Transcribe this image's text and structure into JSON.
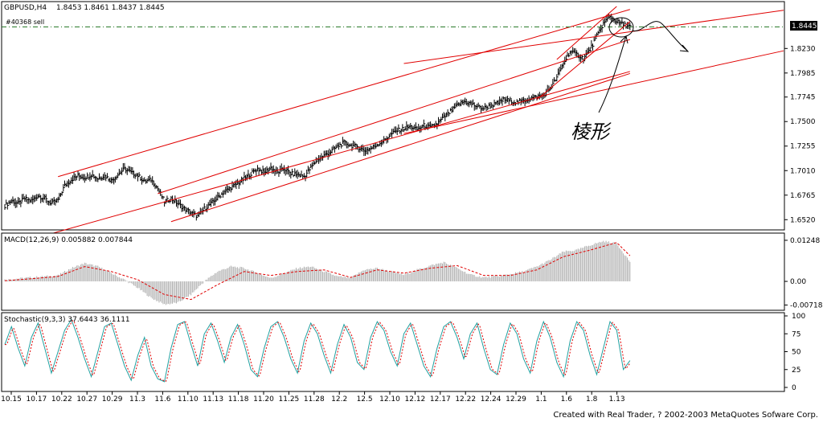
{
  "window": {
    "symbol": "GBPUSD,H4",
    "ohlc": "1.8453 1.8461 1.8437 1.8445",
    "order_label": "#40368 sell",
    "current_price": "1.8445",
    "annotation_text": "棱形",
    "footer": "Created with Real Trader, ? 2002-2003 MetaQuotes Sofware Corp."
  },
  "colors": {
    "bar": "#000000",
    "channel": "#e00000",
    "order_line": "#2a7a2a",
    "macd_hist": "#b0b0b0",
    "macd_signal": "#e00000",
    "stoch_main": "#20a0a0",
    "stoch_signal": "#e00000",
    "price_box": "#000000"
  },
  "chart_data": [
    {
      "type": "line",
      "subtype": "ohlc-bars",
      "name": "GBPUSD H4",
      "ylim": [
        1.645,
        1.865
      ],
      "price_ticks": [
        "1.8445",
        "1.8230",
        "1.7985",
        "1.7745",
        "1.7500",
        "1.7255",
        "1.7010",
        "1.6765",
        "1.6520"
      ],
      "x_ticks": [
        "10.15",
        "10.17",
        "10.22",
        "10.27",
        "10.29",
        "11.3",
        "11.6",
        "11.10",
        "11.13",
        "11.18",
        "11.20",
        "11.25",
        "11.28",
        "12.2",
        "12.5",
        "12.10",
        "12.12",
        "12.17",
        "12.22",
        "12.24",
        "12.29",
        "1.1",
        "1.6",
        "1.8",
        "1.13"
      ],
      "close_path": [
        [
          0,
          1.666
        ],
        [
          5,
          1.671
        ],
        [
          10,
          1.668
        ],
        [
          15,
          1.673
        ],
        [
          20,
          1.671
        ],
        [
          25,
          1.676
        ],
        [
          30,
          1.673
        ],
        [
          35,
          1.668
        ],
        [
          40,
          1.672
        ],
        [
          45,
          1.686
        ],
        [
          50,
          1.692
        ],
        [
          55,
          1.696
        ],
        [
          60,
          1.694
        ],
        [
          65,
          1.697
        ],
        [
          70,
          1.693
        ],
        [
          75,
          1.696
        ],
        [
          80,
          1.691
        ],
        [
          85,
          1.697
        ],
        [
          90,
          1.703
        ],
        [
          95,
          1.699
        ],
        [
          100,
          1.696
        ],
        [
          105,
          1.69
        ],
        [
          110,
          1.692
        ],
        [
          115,
          1.683
        ],
        [
          120,
          1.67
        ],
        [
          125,
          1.673
        ],
        [
          130,
          1.668
        ],
        [
          135,
          1.663
        ],
        [
          140,
          1.659
        ],
        [
          145,
          1.655
        ],
        [
          150,
          1.663
        ],
        [
          155,
          1.668
        ],
        [
          160,
          1.674
        ],
        [
          165,
          1.68
        ],
        [
          170,
          1.684
        ],
        [
          175,
          1.688
        ],
        [
          180,
          1.693
        ],
        [
          185,
          1.698
        ],
        [
          190,
          1.703
        ],
        [
          195,
          1.699
        ],
        [
          200,
          1.704
        ],
        [
          205,
          1.699
        ],
        [
          210,
          1.703
        ],
        [
          215,
          1.698
        ],
        [
          220,
          1.697
        ],
        [
          225,
          1.695
        ],
        [
          230,
          1.704
        ],
        [
          235,
          1.712
        ],
        [
          240,
          1.716
        ],
        [
          245,
          1.72
        ],
        [
          250,
          1.725
        ],
        [
          255,
          1.729
        ],
        [
          260,
          1.726
        ],
        [
          265,
          1.725
        ],
        [
          270,
          1.721
        ],
        [
          275,
          1.723
        ],
        [
          280,
          1.727
        ],
        [
          285,
          1.731
        ],
        [
          290,
          1.737
        ],
        [
          295,
          1.741
        ],
        [
          300,
          1.743
        ],
        [
          305,
          1.745
        ],
        [
          310,
          1.742
        ],
        [
          315,
          1.746
        ],
        [
          320,
          1.744
        ],
        [
          325,
          1.748
        ],
        [
          330,
          1.754
        ],
        [
          335,
          1.76
        ],
        [
          340,
          1.766
        ],
        [
          345,
          1.77
        ],
        [
          350,
          1.768
        ],
        [
          355,
          1.765
        ],
        [
          360,
          1.763
        ],
        [
          365,
          1.766
        ],
        [
          370,
          1.768
        ],
        [
          375,
          1.772
        ],
        [
          380,
          1.771
        ],
        [
          385,
          1.769
        ],
        [
          390,
          1.771
        ],
        [
          395,
          1.773
        ],
        [
          400,
          1.775
        ],
        [
          405,
          1.776
        ],
        [
          410,
          1.783
        ],
        [
          415,
          1.794
        ],
        [
          420,
          1.808
        ],
        [
          425,
          1.82
        ],
        [
          430,
          1.817
        ],
        [
          435,
          1.813
        ],
        [
          440,
          1.822
        ],
        [
          445,
          1.835
        ],
        [
          450,
          1.848
        ],
        [
          455,
          1.855
        ],
        [
          460,
          1.85
        ],
        [
          465,
          1.847
        ],
        [
          470,
          1.845
        ]
      ]
    },
    {
      "type": "bar",
      "name": "MACD(12,26,9) 0.005882 0.007844",
      "ylim": [
        -0.0078,
        0.0132
      ],
      "ticks": [
        "0.01248",
        "0.00",
        "-0.00718"
      ],
      "hist_path": [
        [
          0,
          0.0005
        ],
        [
          20,
          0.0012
        ],
        [
          40,
          0.0018
        ],
        [
          50,
          0.004
        ],
        [
          60,
          0.0055
        ],
        [
          70,
          0.0045
        ],
        [
          85,
          0.0015
        ],
        [
          90,
          0.0005
        ],
        [
          100,
          -0.002
        ],
        [
          110,
          -0.005
        ],
        [
          120,
          -0.007
        ],
        [
          130,
          -0.0065
        ],
        [
          140,
          -0.004
        ],
        [
          150,
          0.0
        ],
        [
          160,
          0.003
        ],
        [
          170,
          0.0045
        ],
        [
          180,
          0.004
        ],
        [
          190,
          0.0025
        ],
        [
          200,
          0.001
        ],
        [
          210,
          0.0025
        ],
        [
          220,
          0.004
        ],
        [
          230,
          0.0045
        ],
        [
          240,
          0.003
        ],
        [
          250,
          0.0015
        ],
        [
          260,
          0.001
        ],
        [
          270,
          0.0035
        ],
        [
          280,
          0.004
        ],
        [
          290,
          0.003
        ],
        [
          300,
          0.002
        ],
        [
          310,
          0.0035
        ],
        [
          320,
          0.0048
        ],
        [
          330,
          0.0058
        ],
        [
          340,
          0.004
        ],
        [
          350,
          0.002
        ],
        [
          360,
          0.0012
        ],
        [
          370,
          0.0015
        ],
        [
          380,
          0.0022
        ],
        [
          390,
          0.003
        ],
        [
          400,
          0.0045
        ],
        [
          410,
          0.0065
        ],
        [
          420,
          0.009
        ],
        [
          430,
          0.0095
        ],
        [
          440,
          0.011
        ],
        [
          450,
          0.0122
        ],
        [
          460,
          0.0115
        ],
        [
          470,
          0.006
        ]
      ],
      "signal_path": [
        [
          0,
          0.0002
        ],
        [
          20,
          0.0008
        ],
        [
          40,
          0.0015
        ],
        [
          60,
          0.0045
        ],
        [
          80,
          0.003
        ],
        [
          100,
          0.0005
        ],
        [
          120,
          -0.004
        ],
        [
          140,
          -0.0055
        ],
        [
          160,
          -0.001
        ],
        [
          180,
          0.003
        ],
        [
          200,
          0.0018
        ],
        [
          220,
          0.003
        ],
        [
          240,
          0.0035
        ],
        [
          260,
          0.0012
        ],
        [
          280,
          0.0035
        ],
        [
          300,
          0.0025
        ],
        [
          320,
          0.004
        ],
        [
          340,
          0.0048
        ],
        [
          360,
          0.0018
        ],
        [
          380,
          0.0018
        ],
        [
          400,
          0.0035
        ],
        [
          420,
          0.0075
        ],
        [
          440,
          0.0095
        ],
        [
          460,
          0.0118
        ],
        [
          470,
          0.0078
        ]
      ]
    },
    {
      "type": "line",
      "name": "Stochastic(9,3,3) 37.6443 36.1111",
      "ylim": [
        0,
        100
      ],
      "ticks": [
        "100",
        "75",
        "50",
        "25",
        "0"
      ],
      "main_path": [
        [
          0,
          60
        ],
        [
          5,
          85
        ],
        [
          10,
          55
        ],
        [
          15,
          30
        ],
        [
          20,
          70
        ],
        [
          25,
          90
        ],
        [
          30,
          55
        ],
        [
          35,
          20
        ],
        [
          40,
          50
        ],
        [
          45,
          80
        ],
        [
          50,
          95
        ],
        [
          55,
          70
        ],
        [
          60,
          40
        ],
        [
          65,
          15
        ],
        [
          70,
          50
        ],
        [
          75,
          85
        ],
        [
          80,
          90
        ],
        [
          85,
          60
        ],
        [
          90,
          30
        ],
        [
          95,
          10
        ],
        [
          100,
          45
        ],
        [
          105,
          70
        ],
        [
          110,
          30
        ],
        [
          115,
          12
        ],
        [
          120,
          8
        ],
        [
          125,
          55
        ],
        [
          130,
          88
        ],
        [
          135,
          92
        ],
        [
          140,
          60
        ],
        [
          145,
          30
        ],
        [
          150,
          75
        ],
        [
          155,
          90
        ],
        [
          160,
          65
        ],
        [
          165,
          35
        ],
        [
          170,
          70
        ],
        [
          175,
          88
        ],
        [
          180,
          60
        ],
        [
          185,
          25
        ],
        [
          190,
          15
        ],
        [
          195,
          55
        ],
        [
          200,
          85
        ],
        [
          205,
          92
        ],
        [
          210,
          70
        ],
        [
          215,
          40
        ],
        [
          220,
          20
        ],
        [
          225,
          65
        ],
        [
          230,
          90
        ],
        [
          235,
          75
        ],
        [
          240,
          45
        ],
        [
          245,
          20
        ],
        [
          250,
          60
        ],
        [
          255,
          88
        ],
        [
          260,
          70
        ],
        [
          265,
          35
        ],
        [
          270,
          25
        ],
        [
          275,
          70
        ],
        [
          280,
          92
        ],
        [
          285,
          80
        ],
        [
          290,
          50
        ],
        [
          295,
          30
        ],
        [
          300,
          75
        ],
        [
          305,
          90
        ],
        [
          310,
          60
        ],
        [
          315,
          30
        ],
        [
          320,
          15
        ],
        [
          325,
          55
        ],
        [
          330,
          85
        ],
        [
          335,
          92
        ],
        [
          340,
          70
        ],
        [
          345,
          40
        ],
        [
          350,
          75
        ],
        [
          355,
          90
        ],
        [
          360,
          55
        ],
        [
          365,
          25
        ],
        [
          370,
          18
        ],
        [
          375,
          60
        ],
        [
          380,
          90
        ],
        [
          385,
          75
        ],
        [
          390,
          40
        ],
        [
          395,
          20
        ],
        [
          400,
          65
        ],
        [
          405,
          92
        ],
        [
          410,
          70
        ],
        [
          415,
          35
        ],
        [
          420,
          15
        ],
        [
          425,
          65
        ],
        [
          430,
          92
        ],
        [
          435,
          80
        ],
        [
          440,
          45
        ],
        [
          445,
          18
        ],
        [
          450,
          55
        ],
        [
          455,
          92
        ],
        [
          460,
          80
        ],
        [
          465,
          25
        ],
        [
          470,
          37.6
        ]
      ]
    }
  ]
}
